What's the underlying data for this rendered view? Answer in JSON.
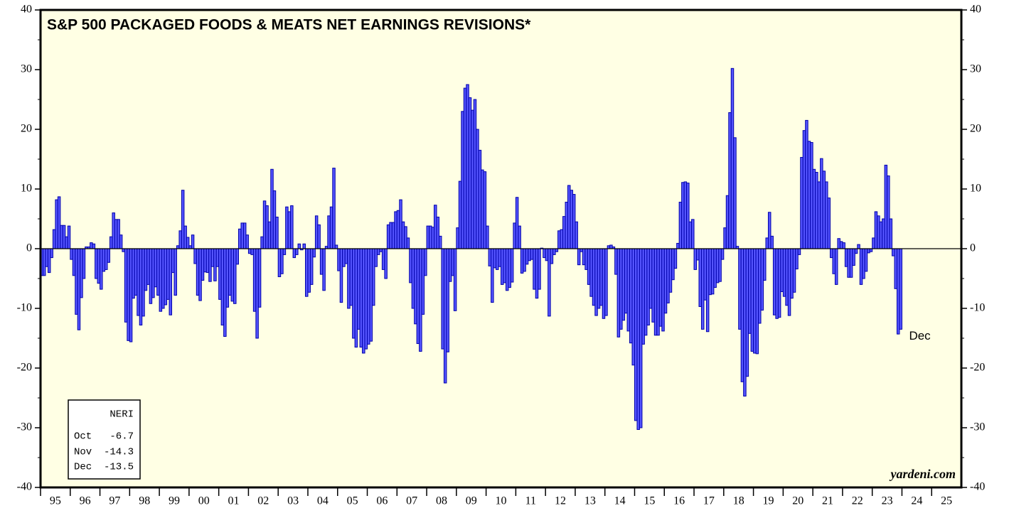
{
  "chart_data": {
    "type": "bar",
    "title": "S&P 500 PACKAGED FOODS & MEATS NET EARNINGS REVISIONS*",
    "color": "#5555ff",
    "stroke": "#0000aa",
    "ylim": [
      -40,
      40
    ],
    "yticks": [
      -40,
      -30,
      -20,
      -10,
      0,
      10,
      20,
      30,
      40
    ],
    "xlim": [
      1995,
      2026
    ],
    "xticks": [
      {
        "value": 1995,
        "label": "95"
      },
      {
        "value": 1996,
        "label": "96"
      },
      {
        "value": 1997,
        "label": "97"
      },
      {
        "value": 1998,
        "label": "98"
      },
      {
        "value": 1999,
        "label": "99"
      },
      {
        "value": 2000,
        "label": "00"
      },
      {
        "value": 2001,
        "label": "01"
      },
      {
        "value": 2002,
        "label": "02"
      },
      {
        "value": 2003,
        "label": "03"
      },
      {
        "value": 2004,
        "label": "04"
      },
      {
        "value": 2005,
        "label": "05"
      },
      {
        "value": 2006,
        "label": "06"
      },
      {
        "value": 2007,
        "label": "07"
      },
      {
        "value": 2008,
        "label": "08"
      },
      {
        "value": 2009,
        "label": "09"
      },
      {
        "value": 2010,
        "label": "10"
      },
      {
        "value": 2011,
        "label": "11"
      },
      {
        "value": 2012,
        "label": "12"
      },
      {
        "value": 2013,
        "label": "13"
      },
      {
        "value": 2014,
        "label": "14"
      },
      {
        "value": 2015,
        "label": "15"
      },
      {
        "value": 2016,
        "label": "16"
      },
      {
        "value": 2017,
        "label": "17"
      },
      {
        "value": 2018,
        "label": "18"
      },
      {
        "value": 2019,
        "label": "19"
      },
      {
        "value": 2020,
        "label": "20"
      },
      {
        "value": 2021,
        "label": "21"
      },
      {
        "value": 2022,
        "label": "22"
      },
      {
        "value": 2023,
        "label": "23"
      },
      {
        "value": 2024,
        "label": "24"
      },
      {
        "value": 2025,
        "label": "25"
      }
    ],
    "values": [
      -4.5,
      -4.5,
      -3,
      -4,
      -1.5,
      3.2,
      8.2,
      8.7,
      3.9,
      3.9,
      2,
      3.8,
      -1.8,
      -4.5,
      -11,
      -13.6,
      -8.2,
      -5,
      0.3,
      0.3,
      1,
      0.8,
      -5,
      -5.8,
      -6.8,
      -3.8,
      -3.5,
      -2.3,
      2,
      6,
      4.9,
      4.9,
      2.3,
      -0.5,
      -12.3,
      -15.4,
      -15.6,
      -8.3,
      -7.8,
      -11.2,
      -12.8,
      -11.3,
      -7,
      -6,
      -9.2,
      -8.2,
      -6.4,
      -7.8,
      -10.5,
      -10,
      -9.4,
      -8.5,
      -11.1,
      -4,
      -7.8,
      0.5,
      3,
      9.8,
      3.8,
      1.9,
      0.5,
      2.3,
      -2.5,
      -7.8,
      -8.7,
      -5.3,
      -3.9,
      -4,
      -5.5,
      -3,
      -5.4,
      -3,
      -8.5,
      -12.8,
      -14.7,
      -9.8,
      -7.8,
      -8.8,
      -9.2,
      -2.6,
      3.3,
      4.3,
      4.3,
      2.3,
      -0.8,
      -1,
      -10.5,
      -15,
      -9.8,
      2,
      8,
      7.2,
      4.5,
      13.3,
      9.7,
      5.3,
      -4.7,
      -4.2,
      -1,
      7,
      6.2,
      7.2,
      -1.5,
      -1,
      0.8,
      -0.2,
      0.8,
      -8,
      -7.3,
      -6,
      -1.4,
      5.5,
      4,
      -4.3,
      -7,
      0.4,
      5.5,
      7,
      13.5,
      0.6,
      -3.7,
      -9,
      -3,
      -2.5,
      -10,
      -9.5,
      -15,
      -16.5,
      -13.5,
      -16.5,
      -17.5,
      -16.8,
      -16,
      -15.5,
      -9.5,
      -3,
      -1,
      -0.5,
      -3.5,
      -5,
      4,
      4.4,
      4.4,
      6.2,
      6.4,
      8.2,
      4.5,
      3.7,
      1.8,
      -5.7,
      -10,
      -12.6,
      -15.9,
      -17.2,
      -11,
      -4.5,
      3.8,
      3.8,
      3.6,
      7.3,
      5.3,
      2.1,
      -16.8,
      -22.5,
      -17.3,
      -5.5,
      -4.5,
      -10.4,
      3.5,
      11.3,
      23,
      26.9,
      27.5,
      25.3,
      23.2,
      25,
      20,
      16.5,
      13.2,
      12.9,
      3.8,
      -2.9,
      -9,
      -3.2,
      -3.5,
      -3,
      -6,
      -5.7,
      -7,
      -6.5,
      -5.6,
      4.3,
      8.6,
      3.8,
      -4.1,
      -3.8,
      -2.6,
      -2,
      -1.8,
      -6.8,
      -8.3,
      -6.8,
      0.1,
      -1.5,
      -2,
      -11.3,
      -2.5,
      -1,
      -0.5,
      3,
      3.2,
      5.4,
      7.8,
      10.6,
      9.8,
      9.1,
      4.5,
      -2.7,
      -0.5,
      -2.7,
      -3.5,
      -6,
      -8,
      -9.5,
      -11.2,
      -10,
      -9.5,
      -11.7,
      -11.2,
      0.5,
      0.6,
      0.3,
      -4.3,
      -14.8,
      -13.5,
      -12,
      -10.8,
      -13.8,
      -15.8,
      -19.5,
      -28.8,
      -30.3,
      -30,
      -16,
      -14.5,
      -12.8,
      -10,
      -12.3,
      -14.5,
      -14.5,
      -13,
      -13.8,
      -10.8,
      -9.1,
      -7.3,
      -5.2,
      -3.3,
      0.9,
      7.8,
      11.1,
      11.2,
      11,
      4.5,
      4.9,
      -3.5,
      -1.9,
      -9.7,
      -13.5,
      -8.6,
      -13.9,
      -7.7,
      -7.6,
      -6.5,
      -5.7,
      -5.5,
      -1.8,
      3.5,
      8.9,
      22.8,
      30.2,
      18.6,
      0.4,
      -13.5,
      -22.3,
      -24.7,
      -21.4,
      -14.2,
      -17.2,
      -17.5,
      -17.6,
      -12.5,
      -10.3,
      -5.3,
      1.8,
      6.1,
      2.1,
      -11.1,
      -11.7,
      -11.5,
      -7.2,
      -8,
      -9.5,
      -11.2,
      -8.3,
      -7.3,
      -3.4,
      -1,
      15.3,
      19.8,
      21.5,
      18,
      17.8,
      13.3,
      12.8,
      11.2,
      15.1,
      13,
      11.2,
      8.5,
      -1.5,
      -4.2,
      -6,
      1.7,
      1.2,
      1,
      -3,
      -4.8,
      -4.8,
      -2.8,
      -0.8,
      0.7,
      -6,
      -5,
      -3.8,
      -0.7,
      -0.5,
      1.8,
      6.2,
      5.5,
      4.5,
      5,
      14,
      12.2,
      5,
      -1.2,
      -6.7,
      -14.3,
      -13.5
    ],
    "annotation": "Dec",
    "credit": "yardeni.com",
    "legend_box": {
      "title": "NERI",
      "rows": [
        [
          "Oct",
          "-6.7"
        ],
        [
          "Nov",
          "-14.3"
        ],
        [
          "Dec",
          "-13.5"
        ]
      ]
    }
  }
}
